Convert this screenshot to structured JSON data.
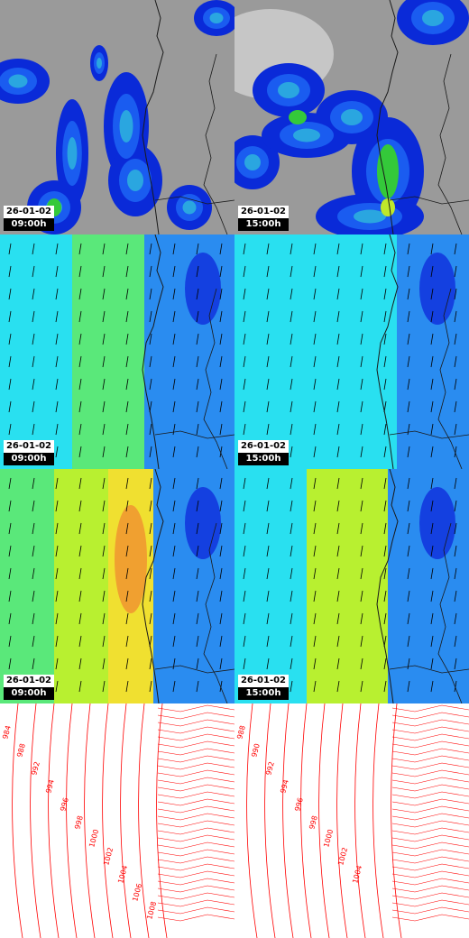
{
  "panels": [
    {
      "id": "cloud-left",
      "kind": "cloud",
      "date": "26-01-02",
      "time": "09:00h"
    },
    {
      "id": "cloud-right",
      "kind": "cloud",
      "date": "26-01-02",
      "time": "15:00h"
    },
    {
      "id": "wind-low-left",
      "kind": "field",
      "date": "26-01-02",
      "time": "09:00h"
    },
    {
      "id": "wind-low-right",
      "kind": "field",
      "date": "26-01-02",
      "time": "15:00h"
    },
    {
      "id": "wind-high-left",
      "kind": "field",
      "date": "26-01-02",
      "time": "09:00h"
    },
    {
      "id": "wind-high-right",
      "kind": "field",
      "date": "26-01-02",
      "time": "15:00h"
    },
    {
      "id": "pressure-left",
      "kind": "isobar"
    },
    {
      "id": "pressure-right",
      "kind": "isobar"
    }
  ],
  "isobar_labels": {
    "left": [
      "984",
      "988",
      "992",
      "994",
      "996",
      "998",
      "1000",
      "1002",
      "1004",
      "1006",
      "1008"
    ],
    "right": [
      "988",
      "990",
      "992",
      "994",
      "996",
      "998",
      "1000",
      "1002",
      "1004"
    ]
  },
  "colors": {
    "cloud_bg": "#9a9a9a",
    "precip": [
      "#0a2ad8",
      "#1a5cf0",
      "#2aa6e0",
      "#34c93a",
      "#bfe82a"
    ],
    "field": [
      "#1440e0",
      "#2a8cf0",
      "#29e0f0",
      "#5ae87a",
      "#b8f030",
      "#f0e030",
      "#f0a030"
    ],
    "isobar": "#ff0000",
    "coast": "#1a1a1a"
  }
}
